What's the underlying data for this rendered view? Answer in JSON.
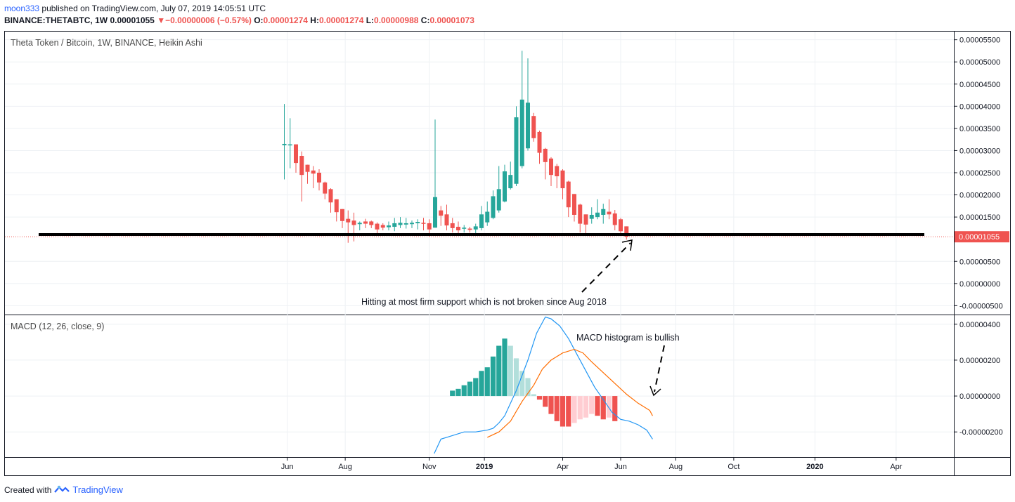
{
  "header": {
    "author": "moon333",
    "published": "published on TradingView.com, July 07, 2019 14:05:51 UTC",
    "symbol": "BINANCE:THETABTC, 1W",
    "price": "0.00001055",
    "down_arrow": "▼",
    "change": "−0.00000006 (−0.57%)",
    "o_label": "O:",
    "o_value": "0.00001274",
    "h_label": "H:",
    "h_value": "0.00001274",
    "l_label": "L:",
    "l_value": "0.00000988",
    "c_label": "C:",
    "c_value": "0.00001073"
  },
  "footer": {
    "created_with": "Created with",
    "brand": "TradingView"
  },
  "colors": {
    "up": "#26a69a",
    "down": "#ef5350",
    "up_light": "#b2dfdb",
    "down_light": "#ffcdd2",
    "macd_line": "#2196f3",
    "signal_line": "#ff6d00"
  },
  "chart_data": [
    {
      "type": "candlestick",
      "title": "Theta Token / Bitcoin, 1W, BINANCE, Heikin Ashi",
      "ylim": [
        -7e-06,
        5.7e-05
      ],
      "y_ticks": [
        {
          "v": 5.5e-05,
          "label": "0.00005500"
        },
        {
          "v": 5e-05,
          "label": "0.00005000"
        },
        {
          "v": 4.5e-05,
          "label": "0.00004500"
        },
        {
          "v": 4e-05,
          "label": "0.00004000"
        },
        {
          "v": 3.5e-05,
          "label": "0.00003500"
        },
        {
          "v": 3e-05,
          "label": "0.00003000"
        },
        {
          "v": 2.5e-05,
          "label": "0.00002500"
        },
        {
          "v": 2e-05,
          "label": "0.00002000"
        },
        {
          "v": 1.5e-05,
          "label": "0.00001500"
        },
        {
          "v": 5e-06,
          "label": "0.00000500"
        },
        {
          "v": 0.0,
          "label": "0.00000000"
        },
        {
          "v": -5e-06,
          "label": "-0.00000500"
        }
      ],
      "last_price": {
        "v": 1.055e-05,
        "label": "0.00001055"
      },
      "support_level": 9.4e-06,
      "annotation": "Hitting at most firm support which is not broken since Aug 2018",
      "candles": [
        {
          "o": 31.2,
          "h": 40.5,
          "l": 23.5,
          "c": 31.5
        },
        {
          "o": 31.2,
          "h": 37.3,
          "l": 26,
          "c": 31.4
        },
        {
          "o": 31.4,
          "h": 31.4,
          "l": 25,
          "c": 27.2
        },
        {
          "o": 28.8,
          "h": 29.8,
          "l": 18.5,
          "c": 24.5
        },
        {
          "o": 26.8,
          "h": 26.8,
          "l": 22.5,
          "c": 25.2
        },
        {
          "o": 25.5,
          "h": 26.5,
          "l": 21.5,
          "c": 24.8
        },
        {
          "o": 25,
          "h": 25.8,
          "l": 21,
          "c": 22.8
        },
        {
          "o": 22.8,
          "h": 23,
          "l": 19,
          "c": 20.3
        },
        {
          "o": 21.3,
          "h": 21.5,
          "l": 16,
          "c": 18.3
        },
        {
          "o": 19,
          "h": 19,
          "l": 14,
          "c": 16.1
        },
        {
          "o": 16.8,
          "h": 16.8,
          "l": 12.5,
          "c": 14.1
        },
        {
          "o": 14.6,
          "h": 16.5,
          "l": 9.2,
          "c": 13.8
        },
        {
          "o": 14.2,
          "h": 16,
          "l": 9.5,
          "c": 13.2
        },
        {
          "o": 13.4,
          "h": 14,
          "l": 12,
          "c": 13.7
        },
        {
          "o": 14,
          "h": 14.6,
          "l": 12.5,
          "c": 13.5
        },
        {
          "o": 14,
          "h": 14.2,
          "l": 12.5,
          "c": 13.2
        },
        {
          "o": 13.5,
          "h": 13.8,
          "l": 11,
          "c": 12.2
        },
        {
          "o": 13.2,
          "h": 13.6,
          "l": 12,
          "c": 12.6
        },
        {
          "o": 12.7,
          "h": 14,
          "l": 12,
          "c": 13.1
        },
        {
          "o": 12.8,
          "h": 14.8,
          "l": 11.8,
          "c": 13.6
        },
        {
          "o": 13.2,
          "h": 15,
          "l": 12.5,
          "c": 13.7
        },
        {
          "o": 13.3,
          "h": 14.8,
          "l": 12.4,
          "c": 13.6
        },
        {
          "o": 13.4,
          "h": 14.2,
          "l": 12.5,
          "c": 13.7
        },
        {
          "o": 13.6,
          "h": 14.5,
          "l": 12.2,
          "c": 13.9
        },
        {
          "o": 13.7,
          "h": 14.8,
          "l": 12,
          "c": 13.5
        },
        {
          "o": 13.6,
          "h": 14.5,
          "l": 10.5,
          "c": 12.2
        },
        {
          "o": 12.6,
          "h": 37,
          "l": 12.6,
          "c": 19.5
        },
        {
          "o": 16.5,
          "h": 17.5,
          "l": 13,
          "c": 15.3
        },
        {
          "o": 15.6,
          "h": 17.8,
          "l": 12,
          "c": 13.1
        },
        {
          "o": 13.6,
          "h": 14.8,
          "l": 11.5,
          "c": 12.5
        },
        {
          "o": 12.8,
          "h": 14,
          "l": 11,
          "c": 12
        },
        {
          "o": 12.4,
          "h": 13.2,
          "l": 11.5,
          "c": 12.6
        },
        {
          "o": 12.4,
          "h": 12.8,
          "l": 11.5,
          "c": 12.1
        },
        {
          "o": 12.2,
          "h": 13.5,
          "l": 11.2,
          "c": 12.9
        },
        {
          "o": 12.5,
          "h": 17.5,
          "l": 12,
          "c": 15.6
        },
        {
          "o": 13.8,
          "h": 18.5,
          "l": 13,
          "c": 16.2
        },
        {
          "o": 14.8,
          "h": 21,
          "l": 14.5,
          "c": 19.7
        },
        {
          "o": 16.5,
          "h": 26.5,
          "l": 16,
          "c": 21.3
        },
        {
          "o": 18.5,
          "h": 26.8,
          "l": 18.3,
          "c": 25.3
        },
        {
          "o": 21.5,
          "h": 27.5,
          "l": 21.2,
          "c": 24.5
        },
        {
          "o": 22.5,
          "h": 40,
          "l": 22,
          "c": 37.5
        },
        {
          "o": 26.5,
          "h": 52.5,
          "l": 26,
          "c": 41.5
        },
        {
          "o": 30.5,
          "h": 50.8,
          "l": 30,
          "c": 40.8
        },
        {
          "o": 37.8,
          "h": 38.5,
          "l": 32,
          "c": 32.8
        },
        {
          "o": 34.2,
          "h": 34.5,
          "l": 27,
          "c": 29.5
        },
        {
          "o": 30.4,
          "h": 30.6,
          "l": 23.5,
          "c": 27.4
        },
        {
          "o": 28.2,
          "h": 28.5,
          "l": 22,
          "c": 24.5
        },
        {
          "o": 26.5,
          "h": 27,
          "l": 21.5,
          "c": 24.2
        },
        {
          "o": 25.5,
          "h": 25.8,
          "l": 19,
          "c": 21.5
        },
        {
          "o": 23,
          "h": 23.2,
          "l": 15,
          "c": 17.2
        },
        {
          "o": 20.2,
          "h": 20.2,
          "l": 14,
          "c": 15.5
        },
        {
          "o": 17.8,
          "h": 18,
          "l": 11.5,
          "c": 13.5
        },
        {
          "o": 15.6,
          "h": 15.6,
          "l": 11,
          "c": 13.3
        },
        {
          "o": 14.6,
          "h": 17.2,
          "l": 13.5,
          "c": 15.5
        },
        {
          "o": 15,
          "h": 19,
          "l": 14.5,
          "c": 16
        },
        {
          "o": 15.5,
          "h": 18,
          "l": 13.5,
          "c": 16.8
        },
        {
          "o": 16.2,
          "h": 19,
          "l": 14.5,
          "c": 15.6
        },
        {
          "o": 15.8,
          "h": 16.6,
          "l": 12,
          "c": 13.2
        },
        {
          "o": 14.5,
          "h": 14.8,
          "l": 11,
          "c": 11.8
        },
        {
          "o": 12.9,
          "h": 12.9,
          "l": 9.9,
          "c": 10.6
        }
      ]
    },
    {
      "type": "macd",
      "title": "MACD (12, 26, close, 9)",
      "annotation": "MACD histogram is bullish",
      "ylim": [
        -3.4e-06,
        4.5e-06
      ],
      "y_ticks": [
        {
          "v": 4e-06,
          "label": "0.00000400"
        },
        {
          "v": 2e-06,
          "label": "0.00000200"
        },
        {
          "v": 0.0,
          "label": "0.00000000"
        },
        {
          "v": -2e-06,
          "label": "-0.00000200"
        }
      ],
      "histogram": [
        0.3,
        0.4,
        0.6,
        0.8,
        1.0,
        1.4,
        1.6,
        2.2,
        2.8,
        3.2,
        2.8,
        2.1,
        1.4,
        1.0,
        0.1,
        -0.2,
        -0.6,
        -1.0,
        -1.4,
        -1.7,
        -1.7,
        -1.5,
        -1.3,
        -1.2,
        -1.0,
        -1.1,
        -1.3,
        -1.2,
        -1.4
      ],
      "histogram_start_index": 29,
      "macd_line": [
        [
          0.85,
          -3.2
        ],
        [
          2.0,
          -2.4
        ],
        [
          3.0,
          -2.3
        ],
        [
          6.0,
          -2.0
        ],
        [
          8.0,
          -2.0
        ],
        [
          10.0,
          -1.9
        ],
        [
          11.0,
          -1.8
        ],
        [
          12.0,
          -1.5
        ],
        [
          13.0,
          -1.1
        ],
        [
          15.0,
          0.3
        ],
        [
          17.0,
          2.0
        ],
        [
          18.5,
          3.5
        ],
        [
          20.0,
          4.4
        ],
        [
          21.0,
          4.3
        ],
        [
          22.5,
          3.9
        ],
        [
          24.0,
          3.2
        ],
        [
          25.5,
          2.3
        ],
        [
          27.0,
          1.4
        ],
        [
          28.5,
          0.5
        ],
        [
          30.0,
          -0.2
        ],
        [
          31.5,
          -0.9
        ],
        [
          33.0,
          -1.3
        ],
        [
          34.5,
          -1.4
        ],
        [
          36.0,
          -1.6
        ],
        [
          37.5,
          -1.9
        ],
        [
          38.5,
          -2.4
        ]
      ],
      "signal_line": [
        [
          10.0,
          -2.3
        ],
        [
          12.0,
          -2.0
        ],
        [
          14.0,
          -1.4
        ],
        [
          16.0,
          -0.3
        ],
        [
          18.0,
          0.6
        ],
        [
          19.5,
          1.5
        ],
        [
          21.0,
          2.0
        ],
        [
          23.0,
          2.4
        ],
        [
          25.0,
          2.6
        ],
        [
          26.5,
          2.4
        ],
        [
          28.0,
          1.9
        ],
        [
          30.0,
          1.3
        ],
        [
          32.0,
          0.7
        ],
        [
          34.0,
          0.1
        ],
        [
          36.0,
          -0.4
        ],
        [
          38.0,
          -0.8
        ],
        [
          38.5,
          -1.1
        ]
      ]
    }
  ],
  "x_axis": {
    "ticks": [
      {
        "label": "Jun",
        "bold": false,
        "week": 0.5
      },
      {
        "label": "Aug",
        "bold": false,
        "week": 10.5
      },
      {
        "label": "Nov",
        "bold": false,
        "week": 25
      },
      {
        "label": "2019",
        "bold": true,
        "week": 34.5
      },
      {
        "label": "Apr",
        "bold": false,
        "week": 48
      },
      {
        "label": "Jun",
        "bold": false,
        "week": 58
      },
      {
        "label": "Aug",
        "bold": false,
        "week": 67.5
      },
      {
        "label": "Oct",
        "bold": false,
        "week": 77.5
      },
      {
        "label": "2020",
        "bold": true,
        "week": 91.5
      },
      {
        "label": "Apr",
        "bold": false,
        "week": 105.5
      }
    ]
  }
}
